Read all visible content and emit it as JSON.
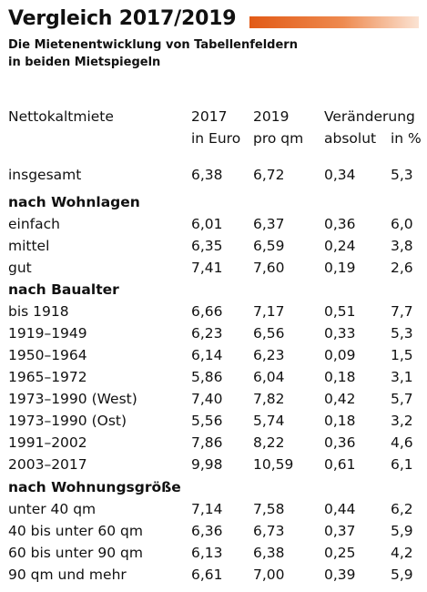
{
  "header": {
    "title": "Vergleich 2017/2019",
    "subtitle_line1": "Die Mietenentwicklung von Tabellenfeldern",
    "subtitle_line2": "in beiden Mietspiegeln",
    "accent_color": "#e25a16"
  },
  "table": {
    "header_row1": {
      "label": "Nettokaltmiete",
      "col_2017": "2017",
      "col_2019": "2019",
      "col_change": "Veränderung",
      "col_pct": ""
    },
    "header_row2": {
      "label": "",
      "col_2017": "in Euro",
      "col_2019": "pro qm",
      "col_change": "absolut",
      "col_pct": "in %"
    },
    "rows": [
      {
        "label": "insgesamt",
        "v2017": "6,38",
        "v2019": "6,72",
        "abs": "0,34",
        "pct": "5,3"
      },
      {
        "section": "nach Wohnlagen"
      },
      {
        "label": "einfach",
        "v2017": "6,01",
        "v2019": "6,37",
        "abs": "0,36",
        "pct": "6,0"
      },
      {
        "label": "mittel",
        "v2017": "6,35",
        "v2019": "6,59",
        "abs": "0,24",
        "pct": "3,8"
      },
      {
        "label": "gut",
        "v2017": "7,41",
        "v2019": "7,60",
        "abs": "0,19",
        "pct": "2,6"
      },
      {
        "section": "nach Baualter"
      },
      {
        "label": "bis 1918",
        "v2017": "6,66",
        "v2019": "7,17",
        "abs": "0,51",
        "pct": "7,7"
      },
      {
        "label": "1919–1949",
        "v2017": "6,23",
        "v2019": "6,56",
        "abs": "0,33",
        "pct": "5,3"
      },
      {
        "label": "1950–1964",
        "v2017": "6,14",
        "v2019": "6,23",
        "abs": "0,09",
        "pct": "1,5"
      },
      {
        "label": "1965–1972",
        "v2017": "5,86",
        "v2019": "6,04",
        "abs": "0,18",
        "pct": "3,1"
      },
      {
        "label": "1973–1990 (West)",
        "v2017": "7,40",
        "v2019": "7,82",
        "abs": "0,42",
        "pct": "5,7"
      },
      {
        "label": "1973–1990 (Ost)",
        "v2017": "5,56",
        "v2019": "5,74",
        "abs": "0,18",
        "pct": "3,2"
      },
      {
        "label": "1991–2002",
        "v2017": "7,86",
        "v2019": "8,22",
        "abs": "0,36",
        "pct": "4,6"
      },
      {
        "label": "2003–2017",
        "v2017": "9,98",
        "v2019": "10,59",
        "abs": "0,61",
        "pct": "6,1"
      },
      {
        "section": "nach Wohnungsgröße"
      },
      {
        "label": "unter 40 qm",
        "v2017": "7,14",
        "v2019": "7,58",
        "abs": "0,44",
        "pct": "6,2"
      },
      {
        "label": "40 bis unter 60 qm",
        "v2017": "6,36",
        "v2019": "6,73",
        "abs": "0,37",
        "pct": "5,9"
      },
      {
        "label": "60 bis unter 90 qm",
        "v2017": "6,13",
        "v2019": "6,38",
        "abs": "0,25",
        "pct": "4,2"
      },
      {
        "label": "90 qm und mehr",
        "v2017": "6,61",
        "v2019": "7,00",
        "abs": "0,39",
        "pct": "5,9"
      }
    ]
  }
}
